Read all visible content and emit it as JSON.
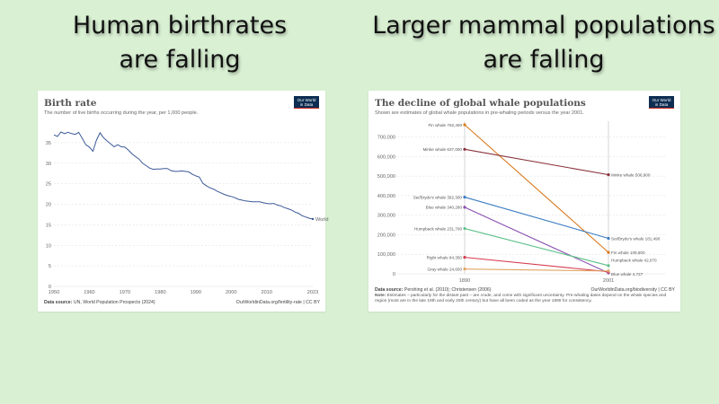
{
  "headlines": {
    "left": [
      "Human birthrates",
      "are falling"
    ],
    "right": [
      "Larger mammal populations",
      "are falling"
    ]
  },
  "logo_text": [
    "Our World",
    "in Data"
  ],
  "left_card": {
    "source_label": "Data source:",
    "source_text": "UN, World Population Prospects (2024)",
    "credit": "OurWorldinData.org/fertility-rate | CC BY"
  },
  "right_card": {
    "source_label": "Data source:",
    "source_text": "Pershing et al. (2010); Christensen (2006)",
    "credit": "OurWorldinData.org/biodiversity | CC BY",
    "note_label": "Note:",
    "note_text": "Estimates – particularly for the distant past – are crude, and come with significant uncertainty. Pre-whaling dates depend on the whale species and region (most are in the late 19th and early 20th century) but have all been coded as the year 1890 for consistency."
  },
  "chart_data": [
    {
      "type": "line",
      "title": "Birth rate",
      "subtitle": "The number of live births occurring during the year, per 1,000 people.",
      "xlim": [
        1950,
        2023
      ],
      "ylim": [
        0,
        40
      ],
      "x_ticks": [
        1950,
        1960,
        1970,
        1980,
        1990,
        2000,
        2010,
        2023
      ],
      "y_ticks": [
        0,
        5,
        10,
        15,
        20,
        25,
        30,
        35
      ],
      "grid": "horizontal dashed",
      "color": "#3b5998",
      "series": [
        {
          "name": "World",
          "x": [
            1950,
            1951,
            1952,
            1953,
            1954,
            1955,
            1956,
            1957,
            1958,
            1959,
            1960,
            1961,
            1962,
            1963,
            1964,
            1965,
            1966,
            1967,
            1968,
            1969,
            1970,
            1971,
            1972,
            1973,
            1974,
            1975,
            1976,
            1977,
            1978,
            1979,
            1980,
            1981,
            1982,
            1983,
            1984,
            1985,
            1986,
            1987,
            1988,
            1989,
            1990,
            1991,
            1992,
            1993,
            1994,
            1995,
            1996,
            1997,
            1998,
            1999,
            2000,
            2001,
            2002,
            2003,
            2004,
            2005,
            2006,
            2007,
            2008,
            2009,
            2010,
            2011,
            2012,
            2013,
            2014,
            2015,
            2016,
            2017,
            2018,
            2019,
            2020,
            2021,
            2022,
            2023
          ],
          "y": [
            36.9,
            36.5,
            37.6,
            37.2,
            37.5,
            37.2,
            37.0,
            37.5,
            36.0,
            34.5,
            33.9,
            32.9,
            35.6,
            37.4,
            36.2,
            35.4,
            34.7,
            34.0,
            34.5,
            34.0,
            33.9,
            33.2,
            32.3,
            31.6,
            31.0,
            30.0,
            29.4,
            28.8,
            28.5,
            28.6,
            28.6,
            28.7,
            28.7,
            28.2,
            28.0,
            28.0,
            28.1,
            28.0,
            27.9,
            27.3,
            26.9,
            26.6,
            25.1,
            24.5,
            24.0,
            23.7,
            23.2,
            22.8,
            22.4,
            22.1,
            21.9,
            21.6,
            21.2,
            21.0,
            20.8,
            20.7,
            20.6,
            20.6,
            20.6,
            20.4,
            20.2,
            20.1,
            20.2,
            19.8,
            19.6,
            19.2,
            18.9,
            18.6,
            18.1,
            17.8,
            17.2,
            16.9,
            16.6,
            16.4
          ]
        }
      ]
    },
    {
      "type": "line",
      "title": "The decline of global whale populations",
      "subtitle": "Shown are estimates of global whale populations in pre-whaling periods versus the year 2001.",
      "categories": [
        "1890",
        "2001"
      ],
      "ylim": [
        0,
        762400
      ],
      "y_ticks": [
        0,
        100000,
        200000,
        300000,
        400000,
        500000,
        600000,
        700000
      ],
      "y_tick_labels": [
        "0",
        "100,000",
        "200,000",
        "300,000",
        "400,000",
        "500,000",
        "600,000",
        "700,000"
      ],
      "grid": "horizontal dashed",
      "series": [
        {
          "name": "Fin whale",
          "values": [
            762400,
            109600
          ],
          "labels": [
            "762,400",
            "109,600"
          ],
          "color": "#d97a1f"
        },
        {
          "name": "Minke whale",
          "values": [
            637000,
            506900
          ],
          "labels": [
            "637,000",
            "506,900"
          ],
          "color": "#883039"
        },
        {
          "name": "Sei/Bryde's whale",
          "values": [
            392300,
            181490
          ],
          "labels": [
            "392,300",
            "181,490"
          ],
          "color": "#3c7dc4"
        },
        {
          "name": "Blue whale",
          "values": [
            340280,
            4727
          ],
          "labels": [
            "340,280",
            "4,727"
          ],
          "color": "#8a4fb0"
        },
        {
          "name": "Humpback whale",
          "values": [
            231700,
            42070
          ],
          "labels": [
            "231,700",
            "42,070"
          ],
          "color": "#5cc18a"
        },
        {
          "name": "Right whale",
          "values": [
            84350,
            10500
          ],
          "labels": [
            "84,350",
            ""
          ],
          "color": "#d63a4e"
        },
        {
          "name": "Gray whale",
          "values": [
            24600,
            14400
          ],
          "labels": [
            "24,600",
            ""
          ],
          "color": "#e0a563"
        }
      ]
    }
  ]
}
